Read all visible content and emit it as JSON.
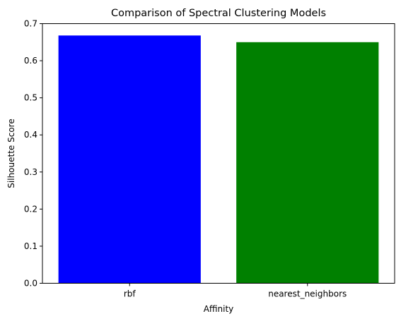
{
  "chart_data": {
    "type": "bar",
    "title": "Comparison of Spectral Clustering Models",
    "xlabel": "Affinity",
    "ylabel": "Silhouette Score",
    "categories": [
      "rbf",
      "nearest_neighbors"
    ],
    "values": [
      0.668,
      0.65
    ],
    "colors": [
      "#0000ff",
      "#008000"
    ],
    "ylim": [
      0,
      0.7
    ],
    "yticks": [
      0.0,
      0.1,
      0.2,
      0.3,
      0.4,
      0.5,
      0.6,
      0.7
    ],
    "ytick_labels": [
      "0.0",
      "0.1",
      "0.2",
      "0.3",
      "0.4",
      "0.5",
      "0.6",
      "0.7"
    ],
    "grid": false,
    "legend": null
  }
}
